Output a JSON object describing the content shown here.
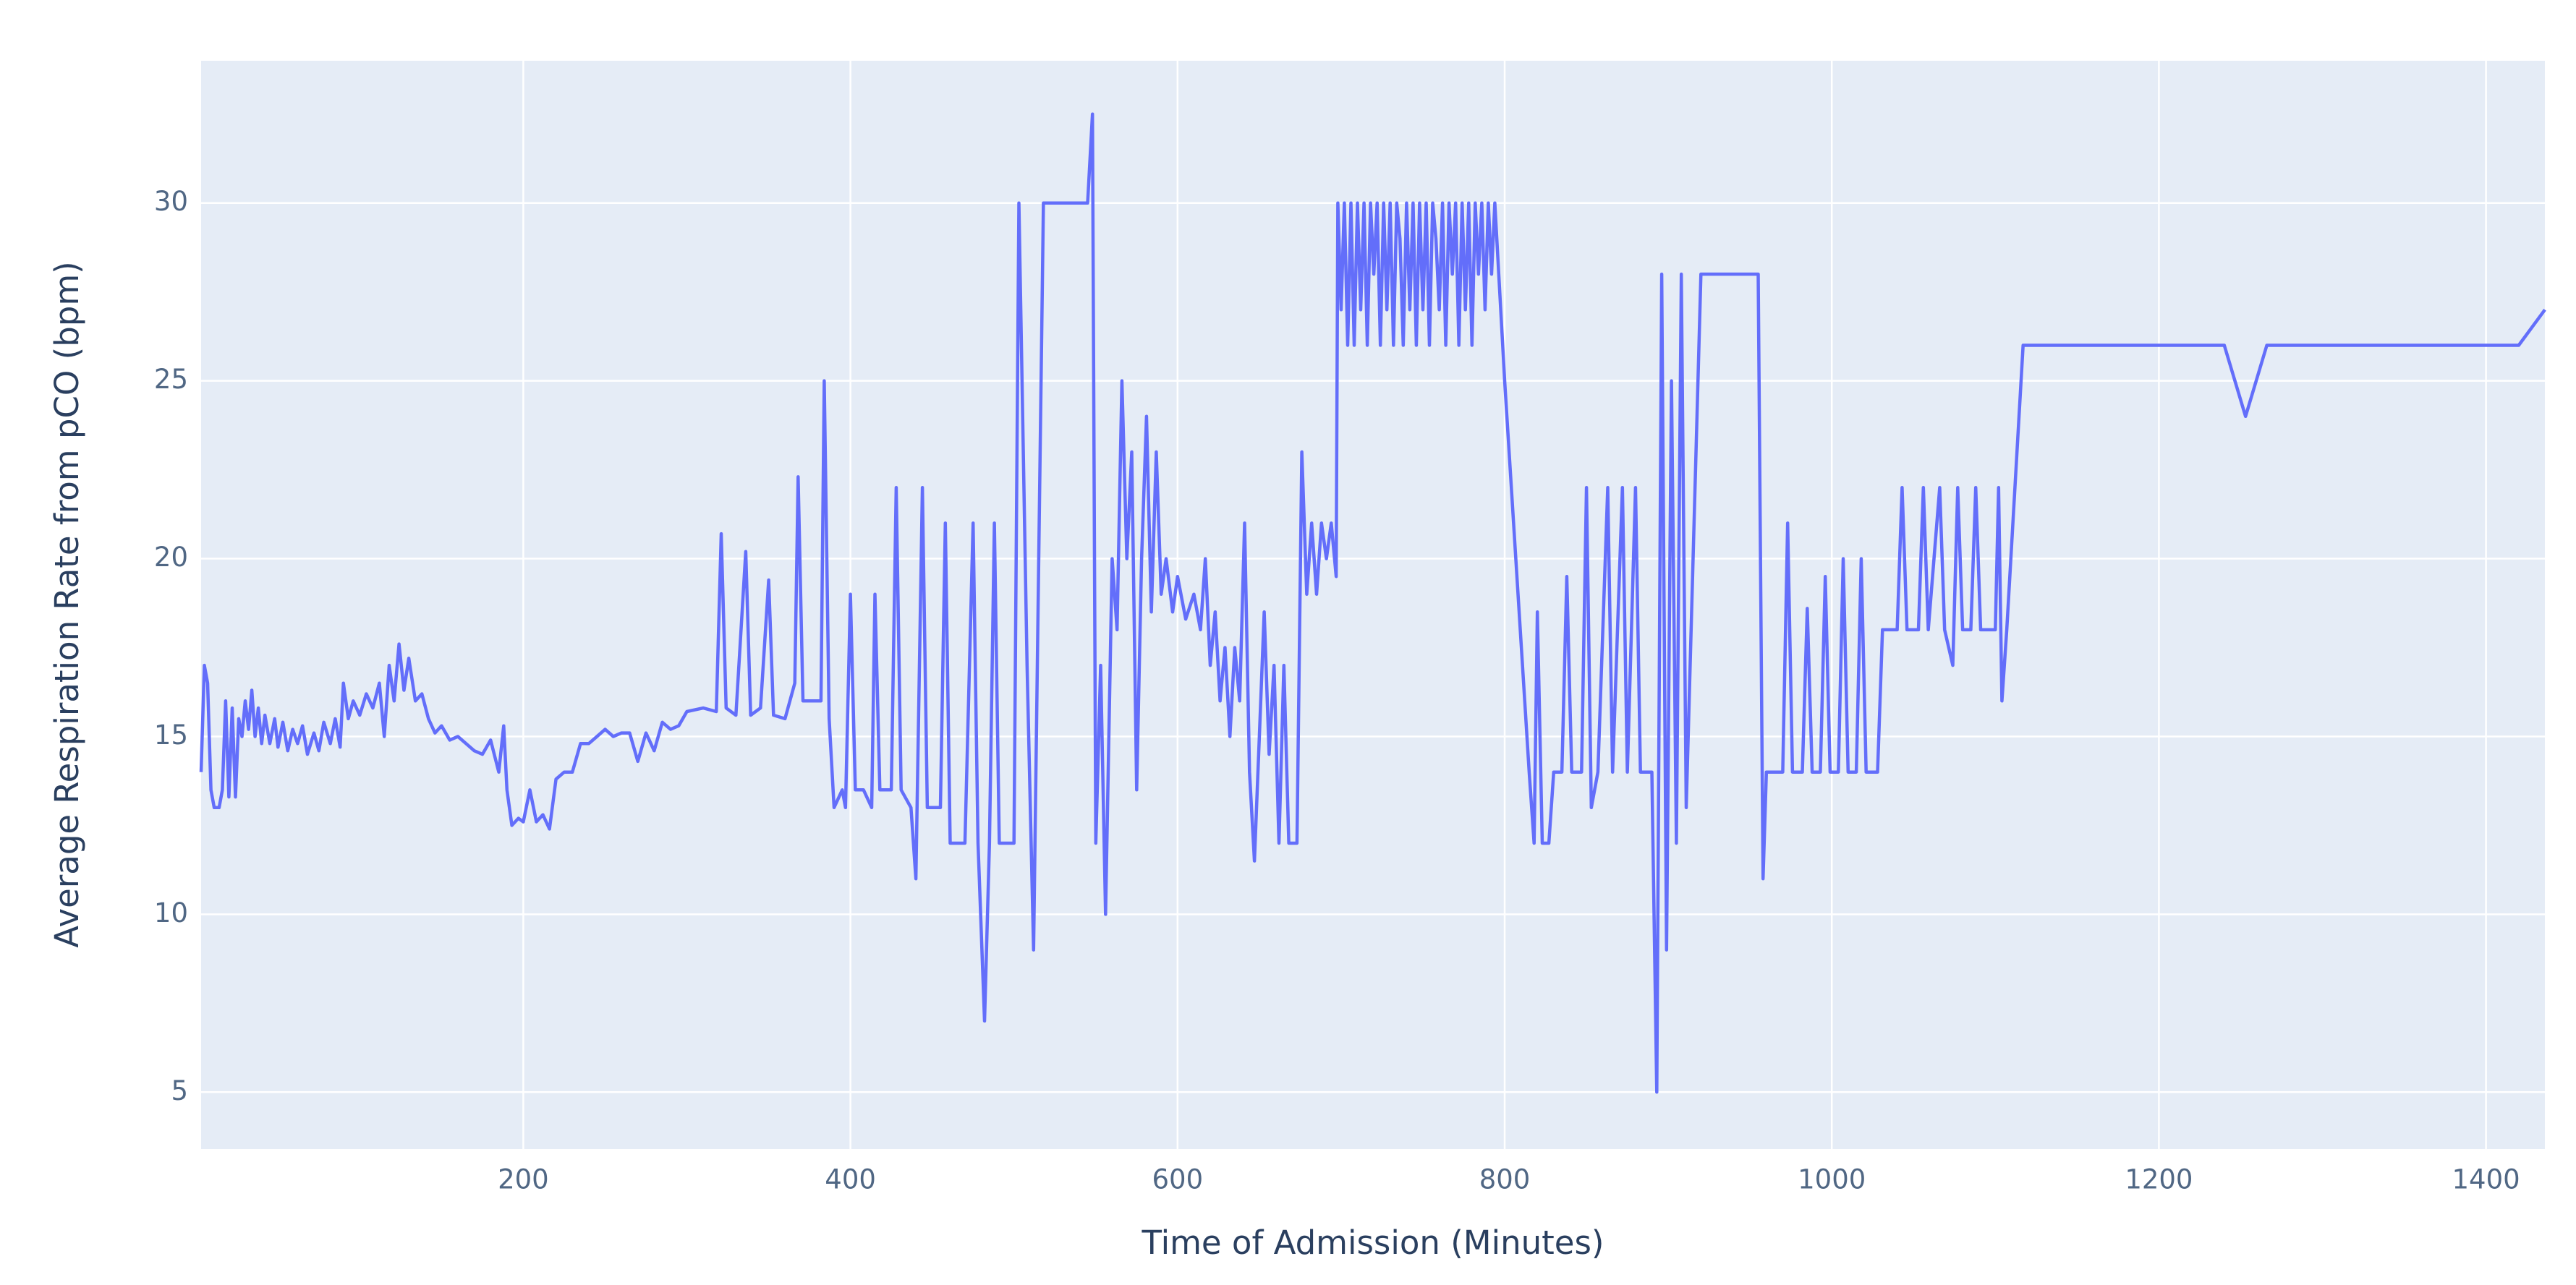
{
  "chart_data": {
    "type": "line",
    "x_label": "Time of Admission (Minutes)",
    "y_label": "Average Respiration Rate from pCO (bpm)",
    "color": "#636efa",
    "grid": true,
    "xlim": [
      3,
      1436
    ],
    "ylim": [
      3.4,
      34
    ],
    "xticks": [
      200,
      400,
      600,
      800,
      1000,
      1200,
      1400
    ],
    "yticks": [
      5,
      10,
      15,
      20,
      25,
      30
    ],
    "x": [
      3,
      5,
      7,
      9,
      11,
      14,
      16,
      18,
      20,
      22,
      24,
      26,
      28,
      30,
      32,
      34,
      36,
      38,
      40,
      42,
      45,
      48,
      50,
      53,
      56,
      59,
      62,
      65,
      68,
      72,
      75,
      78,
      82,
      85,
      88,
      90,
      93,
      96,
      100,
      104,
      108,
      112,
      115,
      118,
      121,
      124,
      127,
      130,
      134,
      138,
      142,
      146,
      150,
      155,
      160,
      165,
      170,
      175,
      180,
      185,
      188,
      190,
      193,
      197,
      200,
      204,
      208,
      212,
      216,
      220,
      225,
      230,
      235,
      240,
      245,
      250,
      255,
      260,
      265,
      270,
      275,
      280,
      285,
      290,
      295,
      300,
      310,
      318,
      321,
      324,
      330,
      336,
      339,
      345,
      350,
      353,
      360,
      366,
      368,
      371,
      378,
      382,
      384,
      387,
      390,
      395,
      397,
      400,
      403,
      408,
      413,
      415,
      418,
      425,
      428,
      431,
      437,
      440,
      444,
      447,
      455,
      458,
      461,
      470,
      475,
      478,
      482,
      485,
      488,
      491,
      500,
      503,
      508,
      512,
      518,
      530,
      545,
      548,
      550,
      553,
      556,
      560,
      563,
      566,
      569,
      572,
      575,
      578,
      581,
      584,
      587,
      590,
      593,
      597,
      600,
      605,
      610,
      614,
      617,
      620,
      623,
      626,
      629,
      632,
      635,
      638,
      641,
      644,
      647,
      650,
      653,
      656,
      659,
      662,
      665,
      668,
      673,
      676,
      679,
      682,
      685,
      688,
      691,
      694,
      697,
      698,
      700,
      702,
      704,
      706,
      708,
      710,
      712,
      714,
      716,
      718,
      720,
      722,
      724,
      726,
      728,
      730,
      732,
      734,
      736,
      738,
      740,
      742,
      744,
      746,
      748,
      750,
      752,
      754,
      756,
      758,
      760,
      762,
      764,
      766,
      768,
      770,
      772,
      774,
      776,
      778,
      780,
      782,
      784,
      786,
      788,
      790,
      792,
      794,
      800,
      815,
      818,
      820,
      823,
      827,
      830,
      835,
      838,
      841,
      847,
      850,
      853,
      857,
      863,
      866,
      872,
      875,
      880,
      883,
      890,
      893,
      896,
      899,
      902,
      905,
      908,
      911,
      920,
      955,
      958,
      960,
      970,
      973,
      976,
      982,
      985,
      988,
      993,
      996,
      999,
      1004,
      1007,
      1010,
      1015,
      1018,
      1021,
      1028,
      1031,
      1035,
      1040,
      1043,
      1046,
      1053,
      1056,
      1059,
      1066,
      1069,
      1074,
      1077,
      1080,
      1085,
      1088,
      1091,
      1100,
      1102,
      1104,
      1107,
      1117,
      1240,
      1253,
      1266,
      1420,
      1436
    ],
    "values": [
      14,
      17,
      16.5,
      13.5,
      13,
      13,
      13.5,
      16,
      13.3,
      15.8,
      13.3,
      15.5,
      15,
      16,
      15.2,
      16.3,
      15,
      15.8,
      14.8,
      15.6,
      14.8,
      15.5,
      14.7,
      15.4,
      14.6,
      15.2,
      14.8,
      15.3,
      14.5,
      15.1,
      14.6,
      15.4,
      14.8,
      15.5,
      14.7,
      16.5,
      15.5,
      16,
      15.6,
      16.2,
      15.8,
      16.5,
      15,
      17,
      16,
      17.6,
      16.3,
      17.2,
      16,
      16.2,
      15.5,
      15.1,
      15.3,
      14.9,
      15,
      14.8,
      14.6,
      14.5,
      14.9,
      14,
      15.3,
      13.5,
      12.5,
      12.7,
      12.6,
      13.5,
      12.6,
      12.8,
      12.4,
      13.8,
      14,
      14,
      14.8,
      14.8,
      15,
      15.2,
      15,
      15.1,
      15.1,
      14.3,
      15.1,
      14.6,
      15.4,
      15.2,
      15.3,
      15.7,
      15.8,
      15.7,
      20.7,
      15.8,
      15.6,
      20.2,
      15.6,
      15.8,
      19.4,
      15.6,
      15.5,
      16.5,
      22.3,
      16,
      16,
      16,
      25,
      15.5,
      13,
      13.5,
      13,
      19,
      13.5,
      13.5,
      13,
      19,
      13.5,
      13.5,
      22,
      13.5,
      13,
      11,
      22,
      13,
      13,
      21,
      12,
      12,
      21,
      12,
      7,
      12,
      21,
      12,
      12,
      30,
      17,
      9,
      30,
      30,
      30,
      32.5,
      12,
      17,
      10,
      20,
      18,
      25,
      20,
      23,
      13.5,
      20,
      24,
      18.5,
      23,
      19,
      20,
      18.5,
      19.5,
      18.3,
      19,
      18,
      20,
      17,
      18.5,
      16,
      17.5,
      15,
      17.5,
      16,
      21,
      14,
      11.5,
      15,
      18.5,
      14.5,
      17,
      12,
      17,
      12,
      12,
      23,
      19,
      21,
      19,
      21,
      20,
      21,
      19.5,
      30,
      27,
      30,
      26,
      30,
      26,
      30,
      27,
      30,
      26,
      30,
      28,
      30,
      26,
      30,
      27,
      30,
      26,
      30,
      29,
      26,
      30,
      27,
      30,
      26,
      30,
      27,
      30,
      26,
      30,
      29,
      27,
      30,
      26,
      30,
      28,
      30,
      26,
      30,
      27,
      30,
      26,
      30,
      28,
      30,
      27,
      30,
      28,
      30,
      25,
      14,
      12,
      18.5,
      12,
      12,
      14,
      14,
      19.5,
      14,
      14,
      22,
      13,
      14,
      22,
      14,
      22,
      14,
      22,
      14,
      14,
      5,
      28,
      9,
      25,
      12,
      28,
      13,
      28,
      28,
      11,
      14,
      14,
      21,
      14,
      14,
      18.6,
      14,
      14,
      19.5,
      14,
      14,
      20,
      14,
      14,
      20,
      14,
      14,
      18,
      18,
      18,
      22,
      18,
      18,
      22,
      18,
      22,
      18,
      17,
      22,
      18,
      18,
      22,
      18,
      18,
      22,
      16,
      18,
      26,
      26,
      24,
      26,
      26,
      27
    ]
  }
}
